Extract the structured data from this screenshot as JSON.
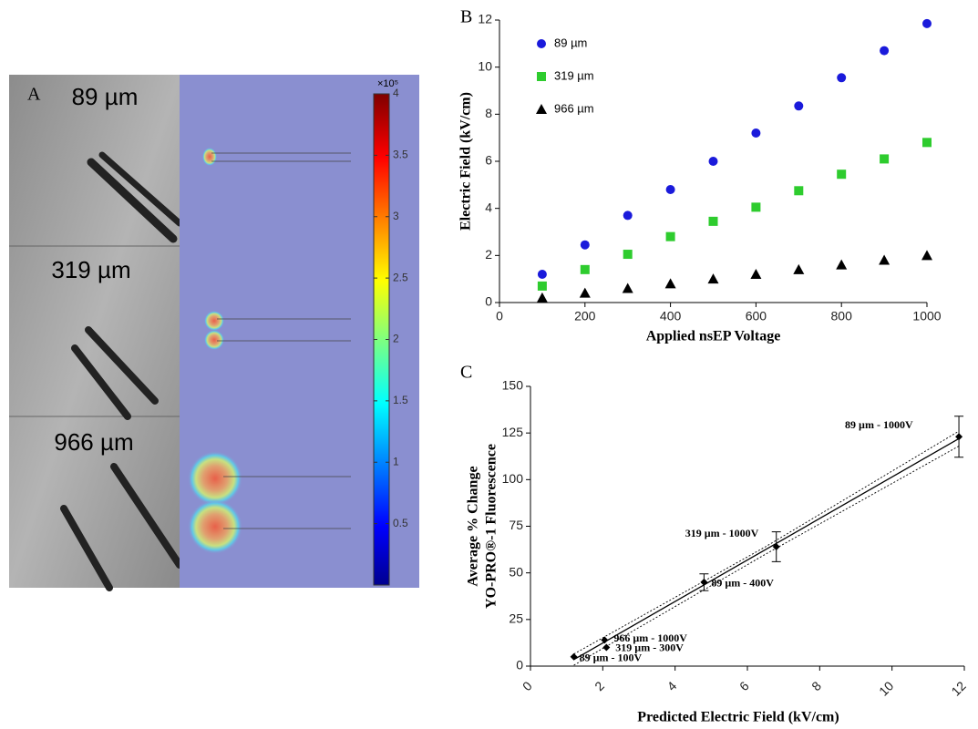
{
  "panel_a": {
    "label": "A",
    "images": [
      {
        "label": "89 µm"
      },
      {
        "label": "319 µm"
      },
      {
        "label": "966 µm"
      }
    ],
    "colorbar": {
      "exponent_label": "×10⁵",
      "lim": [
        0,
        4
      ],
      "ticks": [
        0.5,
        1,
        1.5,
        2,
        2.5,
        3,
        3.5,
        4
      ]
    }
  },
  "chart_data": [
    {
      "type": "scatter",
      "label": "B",
      "xlabel": "Applied nsEP Voltage",
      "ylabel": "Electric Field (kV/cm)",
      "x": [
        100,
        200,
        300,
        400,
        500,
        600,
        700,
        800,
        900,
        1000
      ],
      "series": [
        {
          "name": "89 µm",
          "color": "#1a1adb",
          "marker": "circle",
          "values": [
            1.2,
            2.45,
            3.7,
            4.8,
            6.0,
            7.2,
            8.35,
            9.55,
            10.7,
            11.85
          ]
        },
        {
          "name": "319 µm",
          "color": "#2ecc2e",
          "marker": "square",
          "values": [
            0.7,
            1.4,
            2.05,
            2.8,
            3.45,
            4.05,
            4.75,
            5.45,
            6.1,
            6.8
          ]
        },
        {
          "name": "966 µm",
          "color": "#000000",
          "marker": "triangle",
          "values": [
            0.2,
            0.4,
            0.6,
            0.8,
            1.0,
            1.2,
            1.4,
            1.6,
            1.8,
            2.0
          ]
        }
      ],
      "xlim": [
        0,
        1000
      ],
      "xticks": [
        0,
        200,
        400,
        600,
        800,
        1000
      ],
      "ylim": [
        0,
        12
      ],
      "yticks": [
        0,
        2,
        4,
        6,
        8,
        10,
        12
      ],
      "legend": "top-left"
    },
    {
      "type": "scatter-fit",
      "label": "C",
      "xlabel": "Predicted Electric Field (kV/cm)",
      "ylabel": [
        "Average % Change",
        "YO-PRO®-1 Fluorescence"
      ],
      "x": [
        1.2,
        2.05,
        2.1,
        4.8,
        6.8,
        11.85
      ],
      "values": [
        5,
        14,
        10,
        45,
        64,
        123
      ],
      "errors": [
        null,
        null,
        null,
        4.5,
        8,
        11
      ],
      "point_labels": [
        "89 µm - 100V",
        "966 µm - 1000V",
        "319 µm - 300V",
        "89 µm - 400V",
        "319 µm - 1000V",
        "89 µm - 1000V"
      ],
      "color": "#000000",
      "fit": {
        "x": [
          1.2,
          11.85
        ],
        "y": [
          3.5,
          122
        ]
      },
      "band_upper": {
        "x": [
          1.2,
          6.5,
          11.85
        ],
        "y": [
          6.5,
          64,
          126
        ]
      },
      "band_lower": {
        "x": [
          1.2,
          6.5,
          11.85
        ],
        "y": [
          0.5,
          60,
          118
        ]
      },
      "xlim": [
        0,
        12
      ],
      "xticks": [
        0,
        2,
        4,
        6,
        8,
        10,
        12
      ],
      "ylim": [
        0,
        150
      ],
      "yticks": [
        0,
        25,
        50,
        75,
        100,
        125,
        150
      ]
    }
  ]
}
